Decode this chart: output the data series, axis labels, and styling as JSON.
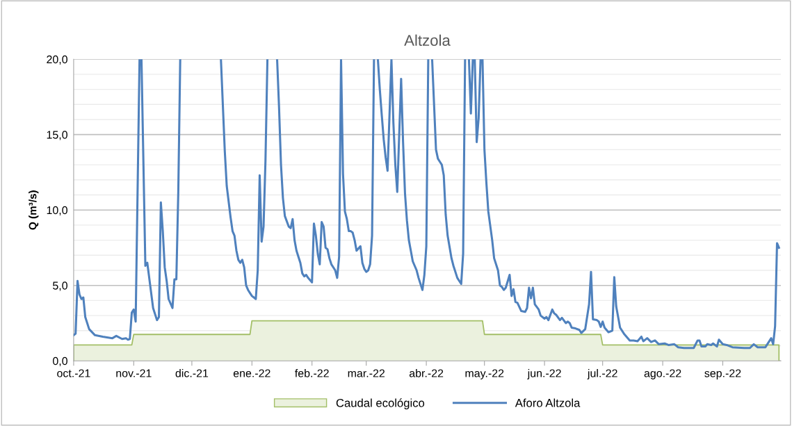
{
  "chart_data": {
    "type": "line",
    "title": "Altzola",
    "ylabel": "Q (m³/s)",
    "xlim": [
      "2021-10-01",
      "2022-10-01"
    ],
    "xticks": [
      {
        "value": "2021-10-01",
        "label": "oct.-21"
      },
      {
        "value": "2021-11-01",
        "label": "nov.-21"
      },
      {
        "value": "2021-12-01",
        "label": "dic.-21"
      },
      {
        "value": "2022-01-01",
        "label": "ene.-22"
      },
      {
        "value": "2022-02-01",
        "label": "feb.-22"
      },
      {
        "value": "2022-03-01",
        "label": "mar.-22"
      },
      {
        "value": "2022-04-01",
        "label": "abr.-22"
      },
      {
        "value": "2022-05-01",
        "label": "may.-22"
      },
      {
        "value": "2022-06-01",
        "label": "jun.-22"
      },
      {
        "value": "2022-07-01",
        "label": "jul.-22"
      },
      {
        "value": "2022-08-01",
        "label": "ago.-22"
      },
      {
        "value": "2022-09-01",
        "label": "sep.-22"
      }
    ],
    "ylim": [
      0,
      20
    ],
    "yticks": [
      {
        "value": 0,
        "label": "0,0"
      },
      {
        "value": 1,
        "label": null
      },
      {
        "value": 2,
        "label": null
      },
      {
        "value": 3,
        "label": null
      },
      {
        "value": 4,
        "label": null
      },
      {
        "value": 5,
        "label": "5,0"
      },
      {
        "value": 6,
        "label": null
      },
      {
        "value": 7,
        "label": null
      },
      {
        "value": 8,
        "label": null
      },
      {
        "value": 9,
        "label": null
      },
      {
        "value": 10,
        "label": "10,0"
      },
      {
        "value": 11,
        "label": null
      },
      {
        "value": 12,
        "label": null
      },
      {
        "value": 13,
        "label": null
      },
      {
        "value": 14,
        "label": null
      },
      {
        "value": 15,
        "label": "15,0"
      },
      {
        "value": 16,
        "label": null
      },
      {
        "value": 17,
        "label": null
      },
      {
        "value": 18,
        "label": null
      },
      {
        "value": 19,
        "label": null
      },
      {
        "value": 20,
        "label": "20,0"
      }
    ],
    "grid": "y",
    "legend": "bottom",
    "marker": "none",
    "series": [
      {
        "name": "Caudal ecológico",
        "type": "area",
        "color": "#ebf1de",
        "x": [
          "2021-10-01",
          "2021-10-31",
          "2021-11-01",
          "2021-12-31",
          "2022-01-01",
          "2022-04-30",
          "2022-05-01",
          "2022-06-30",
          "2022-07-01",
          "2022-09-30"
        ],
        "values": [
          1.05,
          1.05,
          1.75,
          1.75,
          2.65,
          2.65,
          1.75,
          1.75,
          1.05,
          1.05
        ]
      },
      {
        "name": "Aforo Altzola",
        "color": "#4f81bd",
        "x": [
          "2021-10-01",
          "2021-10-02",
          "2021-10-03",
          "2021-10-04",
          "2021-10-05",
          "2021-10-06",
          "2021-10-07",
          "2021-10-09",
          "2021-10-12",
          "2021-10-16",
          "2021-10-21",
          "2021-10-23",
          "2021-10-26",
          "2021-10-28",
          "2021-10-29",
          "2021-10-30",
          "2021-10-31",
          "2021-11-01",
          "2021-11-02",
          "2021-11-04",
          "2021-11-05",
          "2021-11-07",
          "2021-11-08",
          "2021-11-11",
          "2021-11-13",
          "2021-11-14",
          "2021-11-15",
          "2021-11-16",
          "2021-11-17",
          "2021-11-18",
          "2021-11-19",
          "2021-11-21",
          "2021-11-22",
          "2021-11-23",
          "2021-11-24",
          "2021-11-25",
          "2021-11-26",
          "2021-12-16",
          "2021-12-18",
          "2021-12-19",
          "2021-12-21",
          "2021-12-22",
          "2021-12-23",
          "2021-12-24",
          "2021-12-25",
          "2021-12-26",
          "2021-12-27",
          "2021-12-28",
          "2021-12-29",
          "2021-12-30",
          "2021-12-31",
          "2022-01-01",
          "2022-01-02",
          "2022-01-03",
          "2022-01-04",
          "2022-01-05",
          "2022-01-06",
          "2022-01-07",
          "2022-01-08",
          "2022-01-09",
          "2022-01-10",
          "2022-01-14",
          "2022-01-15",
          "2022-01-16",
          "2022-01-17",
          "2022-01-18",
          "2022-01-20",
          "2022-01-21",
          "2022-01-22",
          "2022-01-23",
          "2022-01-24",
          "2022-01-26",
          "2022-01-27",
          "2022-01-28",
          "2022-01-29",
          "2022-01-30",
          "2022-02-01",
          "2022-02-02",
          "2022-02-03",
          "2022-02-04",
          "2022-02-05",
          "2022-02-06",
          "2022-02-07",
          "2022-02-08",
          "2022-02-09",
          "2022-02-10",
          "2022-02-11",
          "2022-02-13",
          "2022-02-14",
          "2022-02-15",
          "2022-02-16",
          "2022-02-17",
          "2022-02-18",
          "2022-02-19",
          "2022-02-20",
          "2022-02-21",
          "2022-02-22",
          "2022-02-23",
          "2022-02-24",
          "2022-02-26",
          "2022-02-27",
          "2022-02-28",
          "2022-03-01",
          "2022-03-02",
          "2022-03-03",
          "2022-03-04",
          "2022-03-05",
          "2022-03-06",
          "2022-03-07",
          "2022-03-08",
          "2022-03-09",
          "2022-03-10",
          "2022-03-11",
          "2022-03-12",
          "2022-03-14",
          "2022-03-15",
          "2022-03-16",
          "2022-03-17",
          "2022-03-19",
          "2022-03-20",
          "2022-03-21",
          "2022-03-22",
          "2022-03-23",
          "2022-03-24",
          "2022-03-25",
          "2022-03-27",
          "2022-03-28",
          "2022-03-30",
          "2022-03-31",
          "2022-04-01",
          "2022-04-02",
          "2022-04-03",
          "2022-04-04",
          "2022-04-06",
          "2022-04-07",
          "2022-04-08",
          "2022-04-09",
          "2022-04-10",
          "2022-04-11",
          "2022-04-12",
          "2022-04-14",
          "2022-04-15",
          "2022-04-17",
          "2022-04-19",
          "2022-04-20",
          "2022-04-21",
          "2022-04-22",
          "2022-04-23",
          "2022-04-24",
          "2022-04-25",
          "2022-04-26",
          "2022-04-27",
          "2022-04-28",
          "2022-04-29",
          "2022-04-30",
          "2022-05-01",
          "2022-05-02",
          "2022-05-03",
          "2022-05-05",
          "2022-05-06",
          "2022-05-08",
          "2022-05-09",
          "2022-05-10",
          "2022-05-11",
          "2022-05-12",
          "2022-05-14",
          "2022-05-15",
          "2022-05-16",
          "2022-05-17",
          "2022-05-18",
          "2022-05-20",
          "2022-05-22",
          "2022-05-23",
          "2022-05-24",
          "2022-05-25",
          "2022-05-26",
          "2022-05-27",
          "2022-05-29",
          "2022-05-30",
          "2022-06-01",
          "2022-06-02",
          "2022-06-03",
          "2022-06-05",
          "2022-06-06",
          "2022-06-07",
          "2022-06-09",
          "2022-06-10",
          "2022-06-12",
          "2022-06-13",
          "2022-06-14",
          "2022-06-15",
          "2022-06-17",
          "2022-06-19",
          "2022-06-20",
          "2022-06-22",
          "2022-06-24",
          "2022-06-25",
          "2022-06-26",
          "2022-06-28",
          "2022-06-29",
          "2022-06-30",
          "2022-07-01",
          "2022-07-02",
          "2022-07-04",
          "2022-07-06",
          "2022-07-07",
          "2022-07-08",
          "2022-07-10",
          "2022-07-12",
          "2022-07-14",
          "2022-07-15",
          "2022-07-17",
          "2022-07-19",
          "2022-07-21",
          "2022-07-22",
          "2022-07-24",
          "2022-07-26",
          "2022-07-28",
          "2022-07-30",
          "2022-08-02",
          "2022-08-04",
          "2022-08-07",
          "2022-08-09",
          "2022-08-12",
          "2022-08-17",
          "2022-08-19",
          "2022-08-20",
          "2022-08-21",
          "2022-08-23",
          "2022-08-24",
          "2022-08-26",
          "2022-08-27",
          "2022-08-29",
          "2022-08-30",
          "2022-09-01",
          "2022-09-03",
          "2022-09-06",
          "2022-09-12",
          "2022-09-15",
          "2022-09-17",
          "2022-09-19",
          "2022-09-21",
          "2022-09-23",
          "2022-09-26",
          "2022-09-27",
          "2022-09-28",
          "2022-09-29",
          "2022-09-30"
        ],
        "values": [
          1.7,
          1.8,
          5.3,
          4.4,
          4.1,
          4.2,
          2.9,
          2.1,
          1.7,
          1.6,
          1.5,
          1.65,
          1.45,
          1.5,
          1.4,
          1.45,
          3.2,
          3.4,
          2.6,
          20,
          20,
          6.3,
          6.5,
          3.5,
          2.7,
          2.9,
          10.5,
          8.6,
          6.2,
          5.3,
          4.1,
          3.5,
          5.4,
          5.4,
          11.2,
          20,
          null,
          20,
          13.9,
          11.6,
          9.5,
          8.6,
          8.3,
          7.3,
          6.7,
          6.5,
          6.7,
          6.2,
          5.0,
          4.7,
          4.5,
          4.3,
          4.2,
          4.1,
          6.0,
          12.3,
          7.9,
          8.9,
          13.3,
          20,
          null,
          20,
          16.8,
          13.0,
          10.8,
          9.6,
          8.9,
          8.8,
          9.4,
          8.0,
          7.3,
          6.5,
          5.8,
          5.6,
          5.7,
          5.5,
          5.2,
          9.1,
          8.3,
          7.1,
          6.4,
          9.2,
          8.9,
          7.5,
          7.4,
          6.8,
          6.4,
          6.0,
          5.5,
          6.9,
          20,
          12.4,
          9.9,
          9.4,
          8.6,
          8.6,
          8.5,
          8.0,
          7.3,
          7.6,
          6.5,
          6.1,
          5.9,
          6.0,
          6.4,
          8.3,
          20,
          null,
          20,
          18.0,
          16.3,
          14.7,
          13.5,
          12.6,
          20,
          15.8,
          13.0,
          11.2,
          18.7,
          14.5,
          11.1,
          9.3,
          8.0,
          7.3,
          6.6,
          6.0,
          5.5,
          4.7,
          5.7,
          7.6,
          20,
          null,
          20,
          14.0,
          13.4,
          13.2,
          13.0,
          12.3,
          9.7,
          8.3,
          6.8,
          6.3,
          5.5,
          5.1,
          7.1,
          20,
          null,
          20,
          16.4,
          20,
          20,
          14.5,
          16.1,
          20,
          20,
          14.0,
          11.8,
          9.9,
          8.0,
          6.8,
          6.0,
          5.0,
          4.9,
          4.7,
          4.85,
          5.7,
          4.3,
          4.75,
          3.9,
          3.85,
          3.3,
          3.25,
          3.5,
          4.85,
          4.15,
          4.85,
          3.75,
          3.4,
          3.0,
          2.8,
          2.9,
          2.7,
          3.4,
          3.15,
          3.05,
          2.7,
          2.85,
          2.5,
          2.6,
          2.5,
          2.2,
          2.15,
          2.05,
          1.85,
          2.1,
          3.75,
          5.9,
          2.75,
          2.7,
          2.6,
          2.25,
          2.6,
          2.2,
          1.9,
          2.0,
          5.55,
          3.6,
          2.2,
          1.8,
          1.5,
          1.35,
          1.35,
          1.3,
          1.6,
          1.3,
          1.5,
          1.25,
          1.35,
          1.1,
          1.15,
          1.05,
          1.1,
          0.9,
          0.85,
          0.85,
          1.35,
          1.35,
          0.95,
          0.95,
          1.1,
          1.05,
          1.15,
          0.95,
          1.4,
          1.1,
          1.05,
          0.9,
          0.85,
          0.85,
          1.1,
          0.9,
          0.9,
          0.9,
          1.5,
          1.1,
          2.3,
          7.8,
          7.5
        ]
      }
    ]
  }
}
